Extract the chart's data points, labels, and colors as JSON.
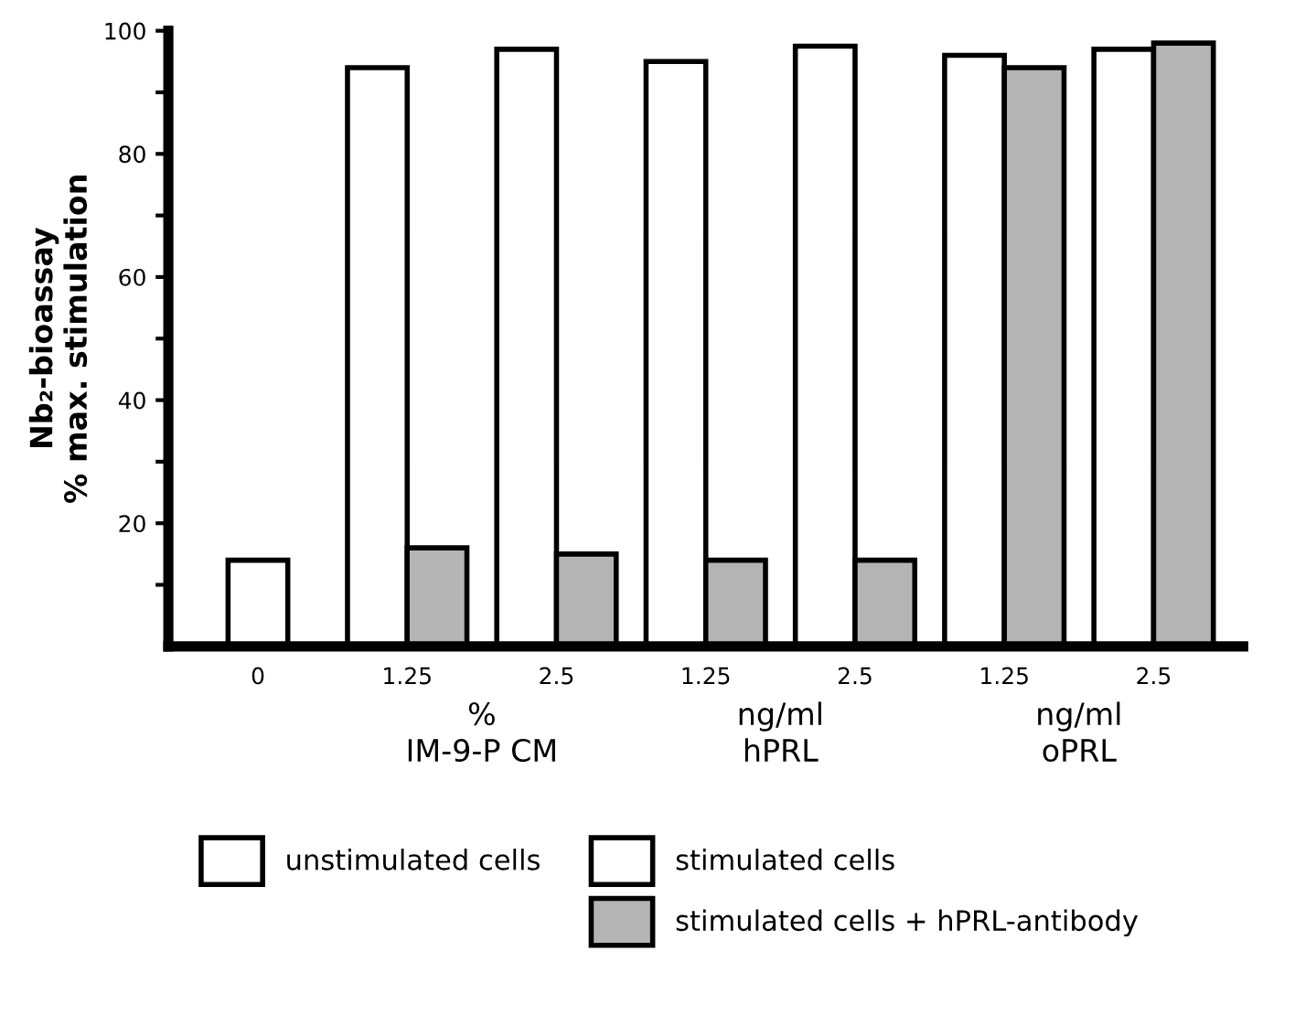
{
  "chart_data": {
    "type": "bar",
    "ylabel": "Nb₂-bioassay\n% max. stimulation",
    "categories": [
      "0",
      "1.25",
      "2.5",
      "1.25",
      "2.5",
      "1.25",
      "2.5"
    ],
    "series": [
      {
        "name": "unstimulated cells",
        "color": "#ffffff",
        "values": [
          14,
          null,
          null,
          null,
          null,
          null,
          null
        ]
      },
      {
        "name": "stimulated cells",
        "color": "#ffffff",
        "values": [
          null,
          94,
          97,
          95,
          97.5,
          96,
          97
        ]
      },
      {
        "name": "stimulated cells + hPRL-antibody",
        "color": "#b4b4b4",
        "values": [
          null,
          16,
          15,
          14,
          14,
          94,
          98
        ]
      }
    ],
    "annotations": [
      "%\nIM-9-P CM",
      "ng/ml\nhPRL",
      "ng/ml\noPRL"
    ],
    "ylim": [
      0,
      100
    ],
    "yticks": [
      {
        "value": 10,
        "label": null
      },
      20,
      {
        "value": 30,
        "label": null
      },
      40,
      {
        "value": 50,
        "label": null
      },
      60,
      {
        "value": 70,
        "label": null
      },
      80,
      {
        "value": 90,
        "label": null
      },
      100
    ],
    "grid": false,
    "legend": "bottom"
  }
}
